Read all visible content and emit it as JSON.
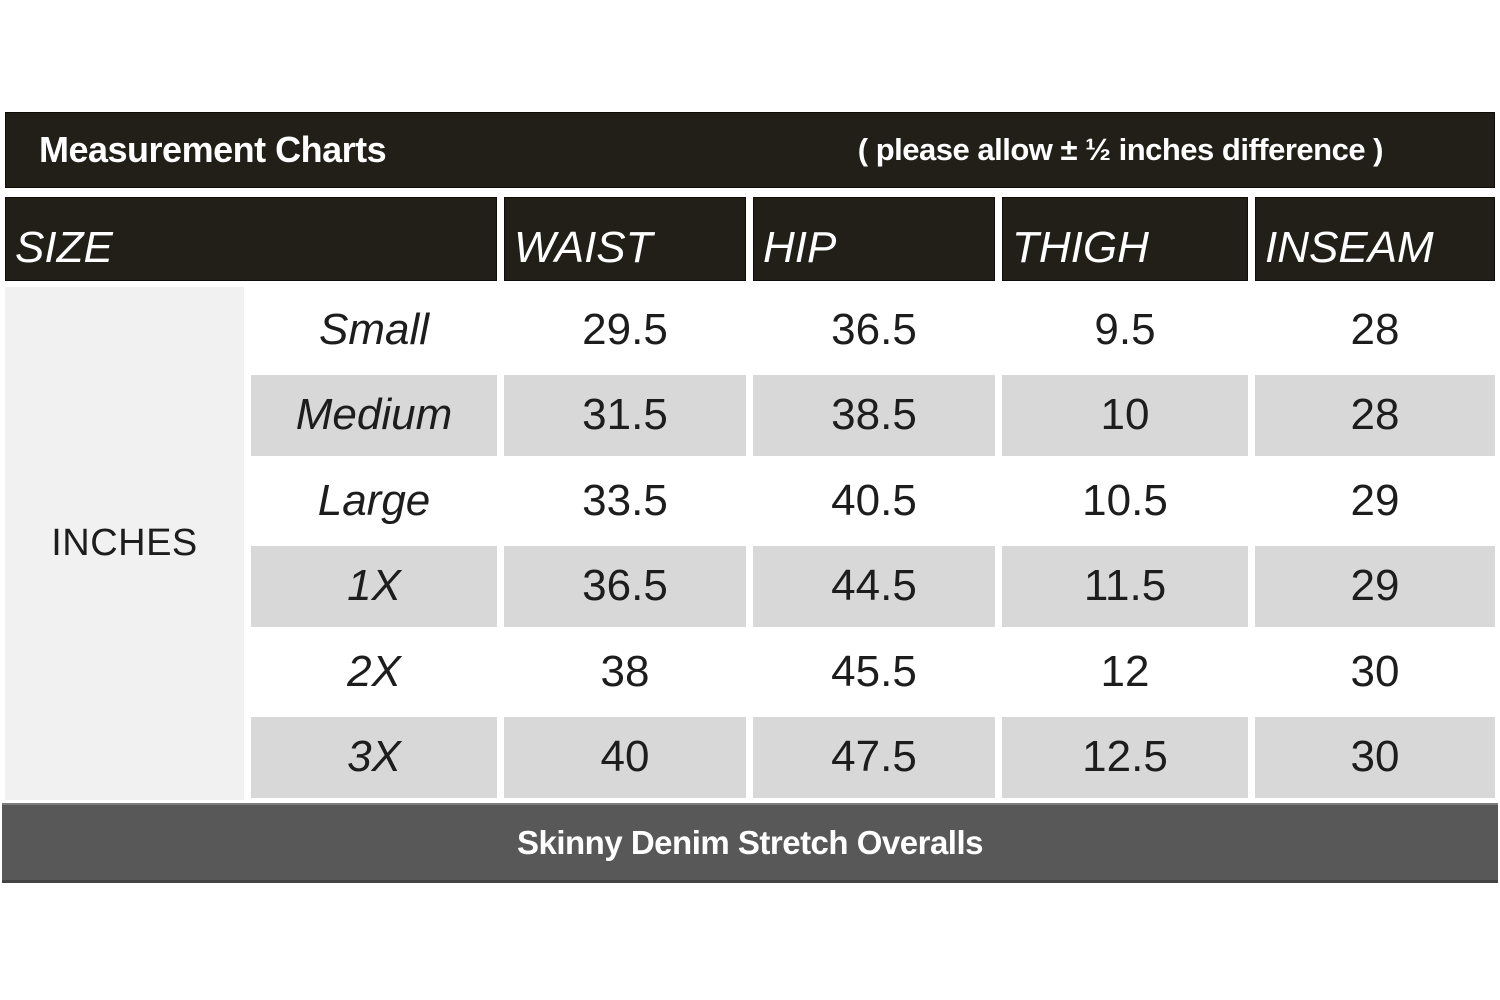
{
  "title_bar": {
    "title": "Measurement Charts",
    "tolerance_note": "( please allow ± ½ inches difference )"
  },
  "size_table": {
    "column_headers": [
      "SIZE",
      "WAIST",
      "HIP",
      "THIGH",
      "INSEAM"
    ],
    "unit_label": "INCHES",
    "rows": [
      {
        "size": "Small",
        "waist": "29.5",
        "hip": "36.5",
        "thigh": "9.5",
        "inseam": "28"
      },
      {
        "size": "Medium",
        "waist": "31.5",
        "hip": "38.5",
        "thigh": "10",
        "inseam": "28"
      },
      {
        "size": "Large",
        "waist": "33.5",
        "hip": "40.5",
        "thigh": "10.5",
        "inseam": "29"
      },
      {
        "size": "1X",
        "waist": "36.5",
        "hip": "44.5",
        "thigh": "11.5",
        "inseam": "29"
      },
      {
        "size": "2X",
        "waist": "38",
        "hip": "45.5",
        "thigh": "12",
        "inseam": "30"
      },
      {
        "size": "3X",
        "waist": "40",
        "hip": "47.5",
        "thigh": "12.5",
        "inseam": "30"
      }
    ]
  },
  "footer_bar": {
    "product_name": "Skinny Denim Stretch Overalls"
  },
  "colors": {
    "header_bg": "#221f18",
    "alt_row_bg": "#d8d8d8",
    "unit_column_bg": "#f1f1f1",
    "footer_bg": "#585858",
    "text_light": "#ffffff",
    "text_dark": "#1d1d1d"
  }
}
